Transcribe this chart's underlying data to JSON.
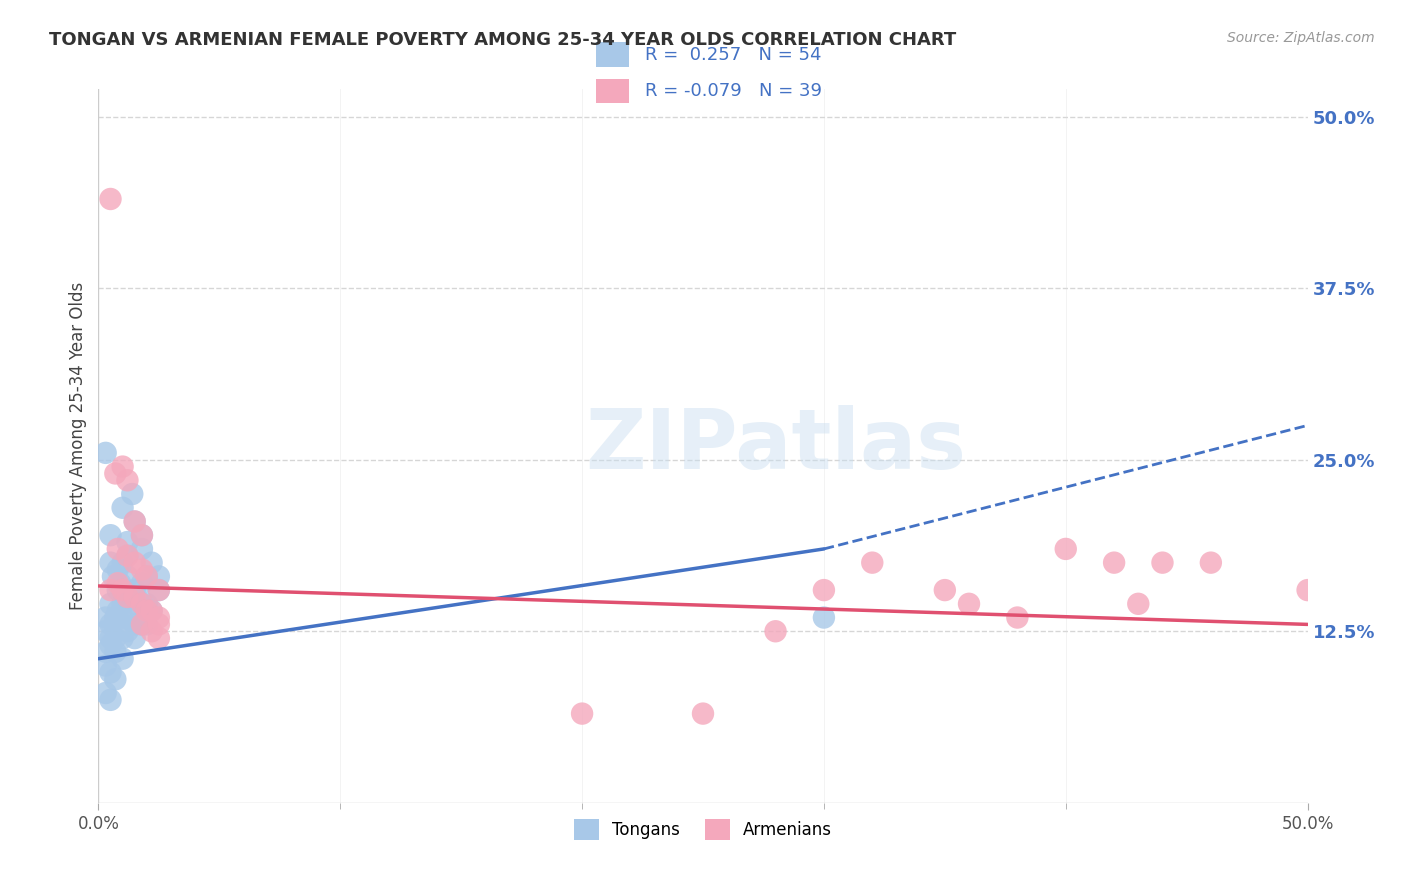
{
  "title": "TONGAN VS ARMENIAN FEMALE POVERTY AMONG 25-34 YEAR OLDS CORRELATION CHART",
  "source": "Source: ZipAtlas.com",
  "ylabel": "Female Poverty Among 25-34 Year Olds",
  "xmin": 0.0,
  "xmax": 0.5,
  "ymin": 0.0,
  "ymax": 0.52,
  "right_yticks": [
    0.125,
    0.25,
    0.375,
    0.5
  ],
  "right_yticklabels": [
    "12.5%",
    "25.0%",
    "37.5%",
    "50.0%"
  ],
  "xtick_left_label": "0.0%",
  "xtick_right_label": "50.0%",
  "tongan_color": "#A8C8E8",
  "armenian_color": "#F4A8BC",
  "tongan_line_color": "#4472C4",
  "armenian_line_color": "#E05070",
  "watermark_text": "ZIPatlas",
  "label_tongans": "Tongans",
  "label_armenians": "Armenians",
  "tongan_R": "0.257",
  "tongan_N": "54",
  "armenian_R": "-0.079",
  "armenian_N": "39",
  "tongan_scatter": [
    [
      0.003,
      0.255
    ],
    [
      0.005,
      0.195
    ],
    [
      0.005,
      0.175
    ],
    [
      0.008,
      0.17
    ],
    [
      0.006,
      0.165
    ],
    [
      0.009,
      0.16
    ],
    [
      0.01,
      0.215
    ],
    [
      0.012,
      0.19
    ],
    [
      0.014,
      0.225
    ],
    [
      0.015,
      0.205
    ],
    [
      0.018,
      0.185
    ],
    [
      0.008,
      0.155
    ],
    [
      0.01,
      0.175
    ],
    [
      0.012,
      0.18
    ],
    [
      0.018,
      0.195
    ],
    [
      0.02,
      0.165
    ],
    [
      0.022,
      0.175
    ],
    [
      0.025,
      0.165
    ],
    [
      0.012,
      0.165
    ],
    [
      0.015,
      0.155
    ],
    [
      0.018,
      0.16
    ],
    [
      0.005,
      0.145
    ],
    [
      0.008,
      0.14
    ],
    [
      0.01,
      0.145
    ],
    [
      0.012,
      0.15
    ],
    [
      0.015,
      0.145
    ],
    [
      0.018,
      0.145
    ],
    [
      0.02,
      0.145
    ],
    [
      0.022,
      0.14
    ],
    [
      0.025,
      0.155
    ],
    [
      0.003,
      0.135
    ],
    [
      0.005,
      0.13
    ],
    [
      0.007,
      0.135
    ],
    [
      0.01,
      0.135
    ],
    [
      0.012,
      0.135
    ],
    [
      0.015,
      0.13
    ],
    [
      0.018,
      0.13
    ],
    [
      0.02,
      0.13
    ],
    [
      0.003,
      0.125
    ],
    [
      0.005,
      0.12
    ],
    [
      0.007,
      0.12
    ],
    [
      0.01,
      0.12
    ],
    [
      0.012,
      0.125
    ],
    [
      0.015,
      0.12
    ],
    [
      0.003,
      0.11
    ],
    [
      0.005,
      0.115
    ],
    [
      0.007,
      0.11
    ],
    [
      0.01,
      0.105
    ],
    [
      0.003,
      0.1
    ],
    [
      0.005,
      0.095
    ],
    [
      0.007,
      0.09
    ],
    [
      0.003,
      0.08
    ],
    [
      0.005,
      0.075
    ],
    [
      0.3,
      0.135
    ]
  ],
  "armenian_scatter": [
    [
      0.005,
      0.44
    ],
    [
      0.007,
      0.24
    ],
    [
      0.01,
      0.245
    ],
    [
      0.012,
      0.235
    ],
    [
      0.015,
      0.205
    ],
    [
      0.018,
      0.195
    ],
    [
      0.008,
      0.185
    ],
    [
      0.012,
      0.18
    ],
    [
      0.015,
      0.175
    ],
    [
      0.018,
      0.17
    ],
    [
      0.02,
      0.165
    ],
    [
      0.025,
      0.155
    ],
    [
      0.005,
      0.155
    ],
    [
      0.008,
      0.16
    ],
    [
      0.01,
      0.155
    ],
    [
      0.012,
      0.15
    ],
    [
      0.015,
      0.15
    ],
    [
      0.018,
      0.145
    ],
    [
      0.02,
      0.14
    ],
    [
      0.022,
      0.14
    ],
    [
      0.025,
      0.135
    ],
    [
      0.018,
      0.13
    ],
    [
      0.022,
      0.125
    ],
    [
      0.025,
      0.13
    ],
    [
      0.025,
      0.12
    ],
    [
      0.2,
      0.065
    ],
    [
      0.25,
      0.065
    ],
    [
      0.28,
      0.125
    ],
    [
      0.3,
      0.155
    ],
    [
      0.32,
      0.175
    ],
    [
      0.35,
      0.155
    ],
    [
      0.36,
      0.145
    ],
    [
      0.38,
      0.135
    ],
    [
      0.4,
      0.185
    ],
    [
      0.42,
      0.175
    ],
    [
      0.43,
      0.145
    ],
    [
      0.44,
      0.175
    ],
    [
      0.46,
      0.175
    ],
    [
      0.5,
      0.155
    ]
  ],
  "background_color": "#FFFFFF",
  "grid_color": "#CCCCCC",
  "legend_color": "#4472C4",
  "tongan_line_solid_end": 0.3,
  "armenian_line_solid_end": 0.5,
  "blue_line_start_y": 0.105,
  "blue_line_end_y_solid": 0.185,
  "blue_line_end_y_dashed": 0.275,
  "pink_line_start_y": 0.158,
  "pink_line_end_y": 0.13
}
